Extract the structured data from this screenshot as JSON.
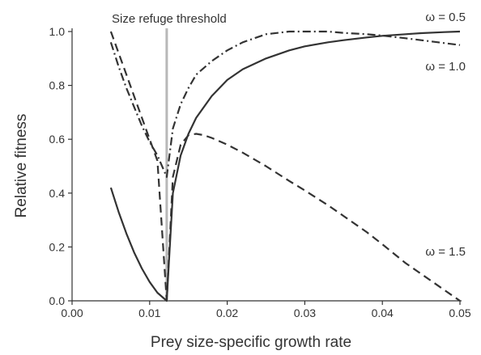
{
  "chart_data": {
    "type": "line",
    "xlabel": "Prey size-specific growth rate",
    "ylabel": "Relative fitness",
    "xlim": [
      0.0,
      0.05
    ],
    "ylim": [
      0.0,
      1.0
    ],
    "x_ticks": [
      "0.00",
      "0.01",
      "0.02",
      "0.03",
      "0.04",
      "0.05"
    ],
    "y_ticks": [
      "0.0",
      "0.2",
      "0.4",
      "0.6",
      "0.8",
      "1.0"
    ],
    "grid": false,
    "threshold": {
      "x": 0.0122,
      "label": "Size refuge threshold",
      "color": "#b8b8b8"
    },
    "series": [
      {
        "name": "ω = 0.5",
        "style": "dash-dot",
        "color": "#333333",
        "x": [
          0.005,
          0.006,
          0.007,
          0.008,
          0.009,
          0.01,
          0.011,
          0.0122,
          0.013,
          0.014,
          0.015,
          0.016,
          0.018,
          0.02,
          0.022,
          0.025,
          0.028,
          0.03,
          0.033,
          0.035,
          0.038,
          0.04,
          0.043,
          0.045,
          0.048,
          0.05
        ],
        "y": [
          0.96,
          0.87,
          0.79,
          0.72,
          0.65,
          0.59,
          0.54,
          0.46,
          0.64,
          0.73,
          0.79,
          0.84,
          0.89,
          0.93,
          0.96,
          0.99,
          1.0,
          1.0,
          1.0,
          0.995,
          0.99,
          0.985,
          0.975,
          0.968,
          0.957,
          0.95
        ]
      },
      {
        "name": "ω = 1.0",
        "style": "solid",
        "color": "#333333",
        "x": [
          0.005,
          0.006,
          0.007,
          0.008,
          0.009,
          0.01,
          0.011,
          0.0122,
          0.013,
          0.014,
          0.015,
          0.016,
          0.018,
          0.02,
          0.022,
          0.025,
          0.028,
          0.03,
          0.033,
          0.035,
          0.038,
          0.04,
          0.043,
          0.045,
          0.048,
          0.05
        ],
        "y": [
          0.42,
          0.33,
          0.25,
          0.18,
          0.12,
          0.07,
          0.03,
          0.0,
          0.4,
          0.54,
          0.62,
          0.68,
          0.76,
          0.82,
          0.86,
          0.9,
          0.93,
          0.945,
          0.96,
          0.968,
          0.978,
          0.984,
          0.99,
          0.994,
          0.998,
          1.0
        ]
      },
      {
        "name": "ω = 1.5",
        "style": "dash",
        "color": "#333333",
        "x": [
          0.005,
          0.006,
          0.007,
          0.008,
          0.009,
          0.01,
          0.011,
          0.0122,
          0.013,
          0.014,
          0.015,
          0.016,
          0.017,
          0.018,
          0.02,
          0.022,
          0.025,
          0.028,
          0.03,
          0.033,
          0.035,
          0.038,
          0.04,
          0.043,
          0.045,
          0.048,
          0.05
        ],
        "y": [
          1.0,
          0.92,
          0.84,
          0.76,
          0.68,
          0.6,
          0.52,
          0.0,
          0.46,
          0.58,
          0.615,
          0.62,
          0.615,
          0.605,
          0.58,
          0.55,
          0.5,
          0.445,
          0.41,
          0.355,
          0.315,
          0.255,
          0.21,
          0.14,
          0.1,
          0.04,
          0.0
        ]
      }
    ],
    "annotations": [
      {
        "text": "ω = 0.5",
        "series": "ω = 0.5"
      },
      {
        "text": "ω = 1.0",
        "series": "ω = 1.0"
      },
      {
        "text": "ω = 1.5",
        "series": "ω = 1.5"
      }
    ]
  }
}
